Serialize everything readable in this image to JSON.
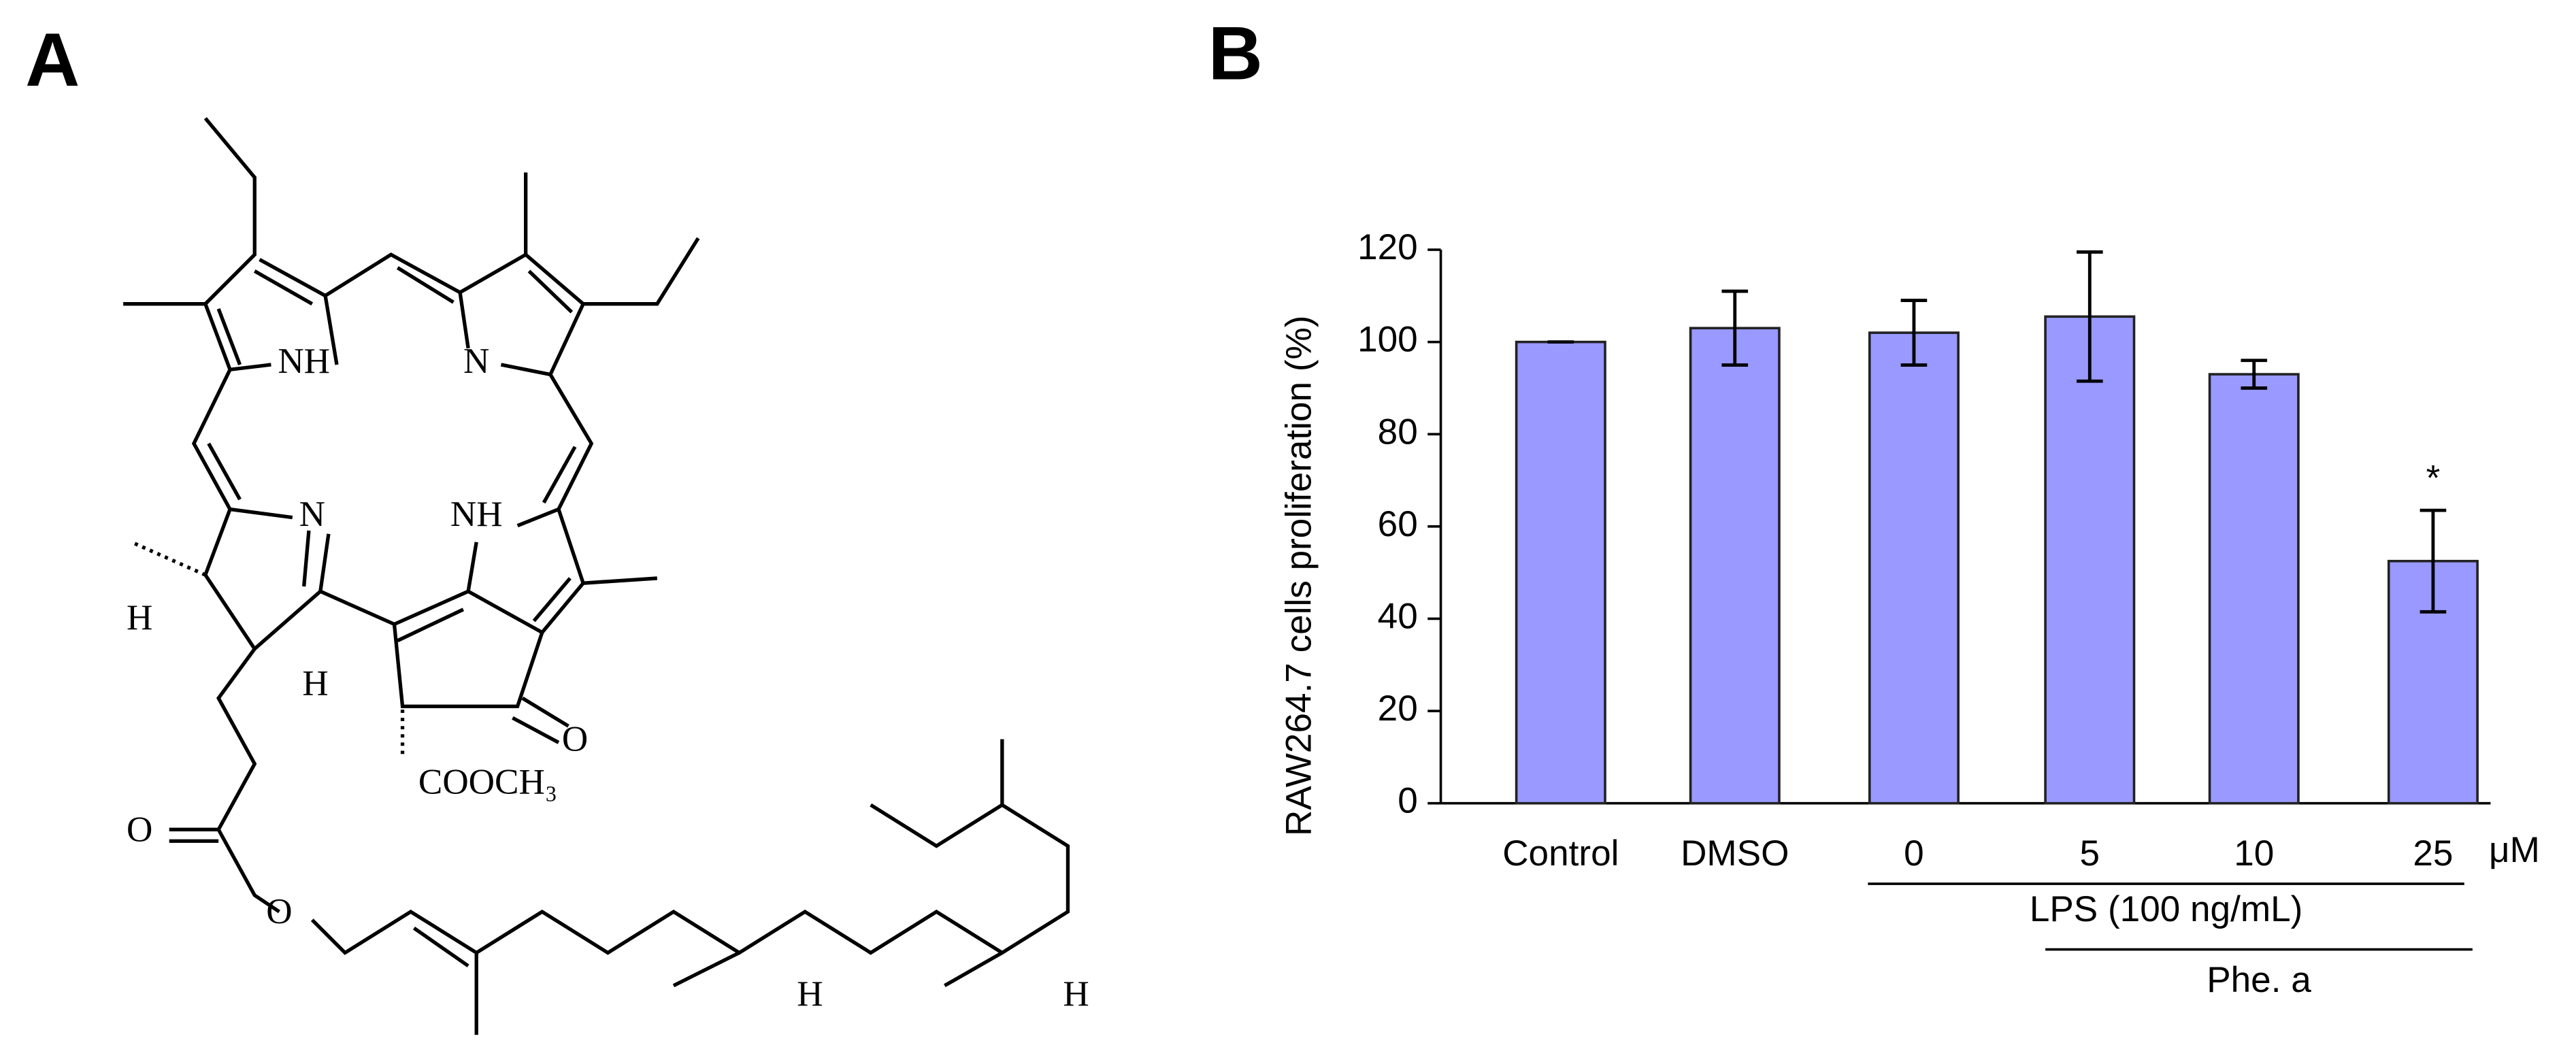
{
  "panels": [
    "A",
    "B"
  ],
  "structure": {
    "labels": [
      "NH",
      "N",
      "N",
      "NH",
      "H",
      "H",
      "COOCH₃",
      "O",
      "O",
      "O",
      "H",
      "H"
    ]
  },
  "chart_data": {
    "type": "bar",
    "ylabel": "RAW264.7 cells proliferation (%)",
    "categories": [
      "Control",
      "DMSO",
      "0",
      "5",
      "10",
      "25"
    ],
    "unit": "μM",
    "values": [
      100,
      103,
      102,
      105.5,
      93,
      52.5
    ],
    "errors": [
      0,
      8,
      7,
      14,
      3,
      11
    ],
    "color": "#9999ff",
    "ylim": [
      0,
      120
    ],
    "yticks": [
      0,
      20,
      40,
      60,
      80,
      100,
      120
    ],
    "groups": [
      "LPS (100 ng/mL)",
      "Phe. a"
    ],
    "annotations": [
      {
        "text": "*",
        "category": "25"
      }
    ]
  }
}
